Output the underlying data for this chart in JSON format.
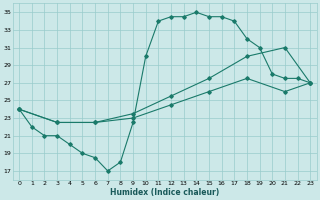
{
  "xlabel": "Humidex (Indice chaleur)",
  "bg_color": "#cce8e8",
  "grid_color": "#99cccc",
  "line_color": "#1a7a6a",
  "xlim": [
    -0.5,
    23.5
  ],
  "ylim": [
    16,
    36
  ],
  "xticks": [
    0,
    1,
    2,
    3,
    4,
    5,
    6,
    7,
    8,
    9,
    10,
    11,
    12,
    13,
    14,
    15,
    16,
    17,
    18,
    19,
    20,
    21,
    22,
    23
  ],
  "yticks": [
    17,
    19,
    21,
    23,
    25,
    27,
    29,
    31,
    33,
    35
  ],
  "curve1_x": [
    0,
    1,
    2,
    3,
    4,
    5,
    6,
    7,
    8,
    9,
    10,
    11,
    12,
    13,
    14,
    15,
    16,
    17,
    18,
    19,
    20,
    21,
    22,
    23
  ],
  "curve1_y": [
    24,
    22,
    21,
    21,
    20,
    19,
    18.5,
    17,
    18,
    22.5,
    30,
    34,
    34.5,
    34.5,
    35,
    34.5,
    34.5,
    34,
    32,
    31,
    28,
    27.5,
    27.5,
    27
  ],
  "diag1_x": [
    0,
    3,
    6,
    9,
    12,
    15,
    18,
    21,
    23
  ],
  "diag1_y": [
    24,
    22.5,
    22.5,
    23.5,
    25.5,
    27.5,
    30,
    31,
    27
  ],
  "diag2_x": [
    0,
    3,
    6,
    9,
    12,
    15,
    18,
    21,
    23
  ],
  "diag2_y": [
    24,
    22.5,
    22.5,
    23,
    24.5,
    26,
    27.5,
    26,
    27
  ]
}
